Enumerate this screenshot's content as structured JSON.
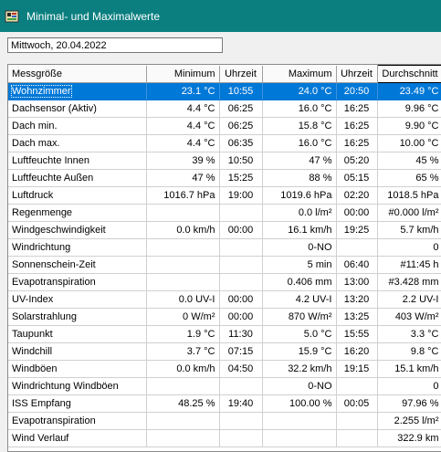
{
  "window": {
    "title": "Minimal- und Maximalwerte"
  },
  "date_field": {
    "value": "Mittwoch, 20.04.2022"
  },
  "table": {
    "headers": {
      "name": "Messgröße",
      "min": "Minimum",
      "min_time": "Uhrzeit",
      "max": "Maximum",
      "max_time": "Uhrzeit",
      "avg": "Durchschnitt"
    },
    "rows": [
      {
        "name": "Wohnzimmer",
        "min": "23.1 °C",
        "min_time": "10:55",
        "max": "24.0 °C",
        "max_time": "20:50",
        "avg": "23.49 °C"
      },
      {
        "name": "Dachsensor (Aktiv)",
        "min": "4.4 °C",
        "min_time": "06:25",
        "max": "16.0 °C",
        "max_time": "16:25",
        "avg": "9.96 °C"
      },
      {
        "name": "Dach min.",
        "min": "4.4 °C",
        "min_time": "06:25",
        "max": "15.8 °C",
        "max_time": "16:25",
        "avg": "9.90 °C"
      },
      {
        "name": "Dach max.",
        "min": "4.4 °C",
        "min_time": "06:35",
        "max": "16.0 °C",
        "max_time": "16:25",
        "avg": "10.00 °C"
      },
      {
        "name": "Luftfeuchte Innen",
        "min": "39 %",
        "min_time": "10:50",
        "max": "47 %",
        "max_time": "05:20",
        "avg": "45 %"
      },
      {
        "name": "Luftfeuchte Außen",
        "min": "47 %",
        "min_time": "15:25",
        "max": "88 %",
        "max_time": "05:15",
        "avg": "65 %"
      },
      {
        "name": "Luftdruck",
        "min": "1016.7 hPa",
        "min_time": "19:00",
        "max": "1019.6 hPa",
        "max_time": "02:20",
        "avg": "1018.5 hPa"
      },
      {
        "name": "Regenmenge",
        "min": "",
        "min_time": "",
        "max": "0.0 l/m²",
        "max_time": "00:00",
        "avg": "#0.000 l/m²"
      },
      {
        "name": "Windgeschwindigkeit",
        "min": "0.0 km/h",
        "min_time": "00:00",
        "max": "16.1 km/h",
        "max_time": "19:25",
        "avg": "5.7 km/h"
      },
      {
        "name": "Windrichtung",
        "min": "",
        "min_time": "",
        "max": "0-NO",
        "max_time": "",
        "avg": "0"
      },
      {
        "name": "Sonnenschein-Zeit",
        "min": "",
        "min_time": "",
        "max": "5 min",
        "max_time": "06:40",
        "avg": "#11:45 h"
      },
      {
        "name": "Evapotranspiration",
        "min": "",
        "min_time": "",
        "max": "0.406 mm",
        "max_time": "13:00",
        "avg": "#3.428 mm"
      },
      {
        "name": "UV-Index",
        "min": "0.0 UV-I",
        "min_time": "00:00",
        "max": "4.2 UV-I",
        "max_time": "13:20",
        "avg": "2.2 UV-I"
      },
      {
        "name": "Solarstrahlung",
        "min": "0 W/m²",
        "min_time": "00:00",
        "max": "870 W/m²",
        "max_time": "13:25",
        "avg": "403 W/m²"
      },
      {
        "name": "Taupunkt",
        "min": "1.9 °C",
        "min_time": "11:30",
        "max": "5.0 °C",
        "max_time": "15:55",
        "avg": "3.3 °C"
      },
      {
        "name": "Windchill",
        "min": "3.7 °C",
        "min_time": "07:15",
        "max": "15.9 °C",
        "max_time": "16:20",
        "avg": "9.8 °C"
      },
      {
        "name": "Windböen",
        "min": "0.0 km/h",
        "min_time": "04:50",
        "max": "32.2 km/h",
        "max_time": "19:15",
        "avg": "15.1 km/h"
      },
      {
        "name": "Windrichtung Windböen",
        "min": "",
        "min_time": "",
        "max": "0-NO",
        "max_time": "",
        "avg": "0"
      },
      {
        "name": "ISS Empfang",
        "min": "48.25 %",
        "min_time": "19:40",
        "max": "100.00 %",
        "max_time": "00:05",
        "avg": "97.96 %"
      },
      {
        "name": "Evapotranspiration",
        "min": "",
        "min_time": "",
        "max": "",
        "max_time": "",
        "avg": "2.255 l/m²"
      },
      {
        "name": "Wind Verlauf",
        "min": "",
        "min_time": "",
        "max": "",
        "max_time": "",
        "avg": "322.9 km"
      }
    ],
    "selected_row": 0
  },
  "colors": {
    "titlebar": "#0b7f80",
    "selection": "#0078d7"
  }
}
